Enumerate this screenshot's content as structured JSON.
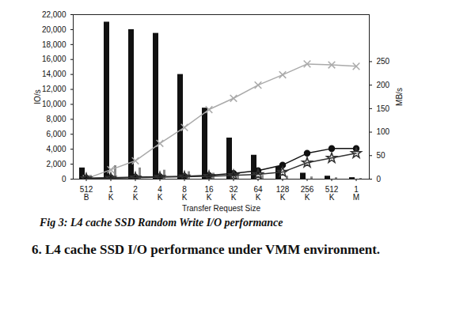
{
  "chart_data": {
    "type": "bar",
    "x_label": "Transfer Request Size",
    "y_label": "IO/s",
    "y2_label": "MB/s",
    "caption": "Fig 3: L4 cache  SSD Random Write I/O performance",
    "categories": [
      "512 B",
      "1 K",
      "2 K",
      "4 K",
      "8 K",
      "16 K",
      "32 K",
      "64 K",
      "128 K",
      "256 K",
      "512 K",
      "1 M"
    ],
    "series": [
      {
        "type": "bar",
        "color": "#111111",
        "values": [
          1500,
          21000,
          20000,
          19500,
          14000,
          9500,
          5500,
          3200,
          1700,
          800,
          400,
          200
        ]
      },
      {
        "type": "bar",
        "color": "#8a8a8a",
        "values": [
          500,
          1800,
          1500,
          1200,
          1000,
          800,
          600,
          500,
          400,
          300,
          200,
          100
        ]
      },
      {
        "type": "line",
        "axis": "y2",
        "color": "#aaaaaa",
        "marker": "x",
        "values": [
          1,
          20,
          39,
          76,
          110,
          148,
          172,
          200,
          222,
          245,
          243,
          240
        ]
      },
      {
        "type": "line",
        "axis": "y2",
        "color": "#111111",
        "marker": "circle",
        "values": [
          2,
          3,
          4,
          5,
          6,
          8,
          12,
          18,
          30,
          55,
          65,
          65
        ]
      },
      {
        "type": "line",
        "axis": "y2",
        "color": "#333333",
        "marker": "star",
        "values": [
          1,
          2,
          3,
          4,
          5,
          6,
          8,
          10,
          15,
          35,
          45,
          55
        ]
      }
    ],
    "ylim": [
      0,
      22000
    ],
    "yticks": [
      0,
      2000,
      4000,
      6000,
      8000,
      10000,
      12000,
      14000,
      16000,
      18000,
      20000,
      22000
    ],
    "y2lim": [
      0,
      350
    ],
    "y2ticks": [
      0,
      50,
      100,
      150,
      200,
      250
    ],
    "grid": false
  },
  "section_heading": "6. L4 cache SSD I/O performance under VMM environment."
}
